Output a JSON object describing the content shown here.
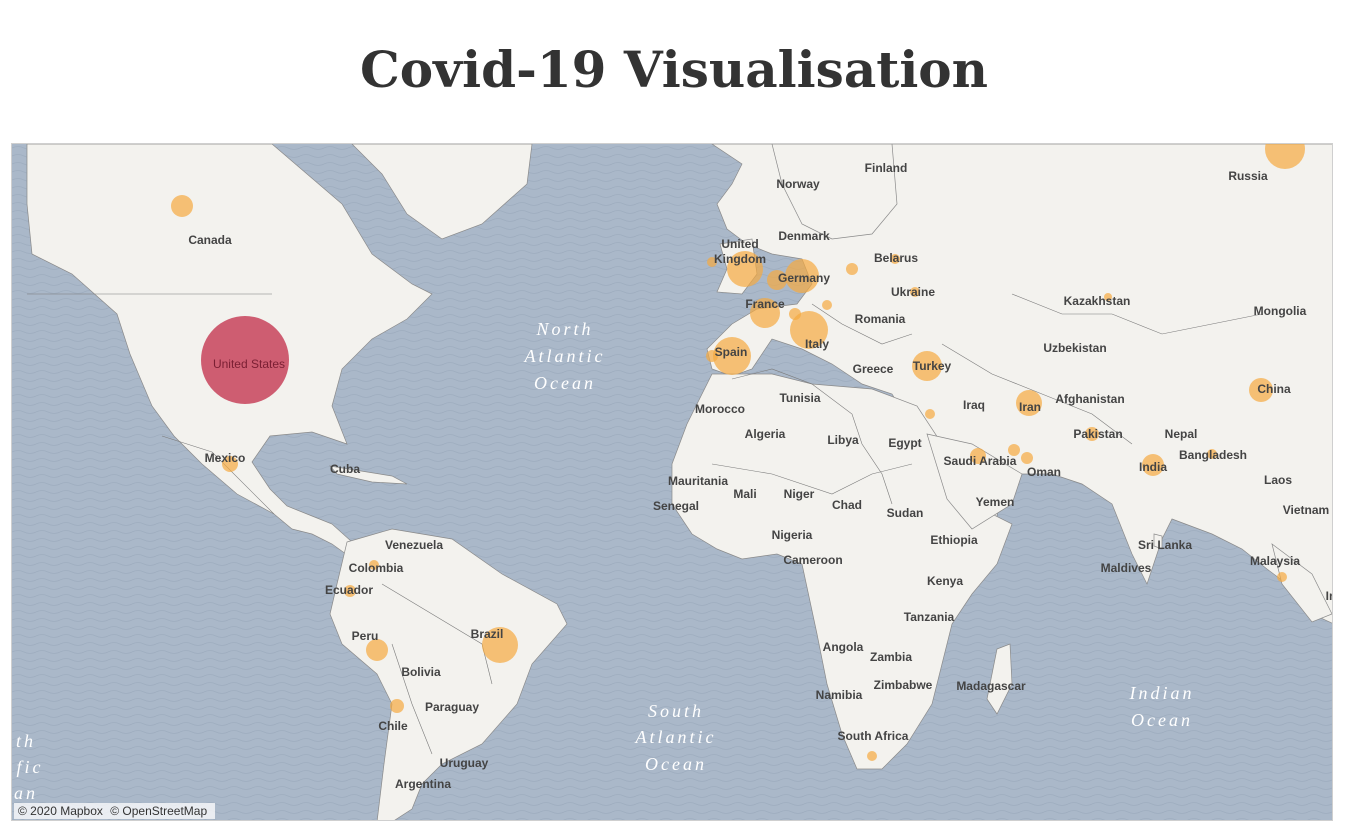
{
  "title": "Covid-19 Visualisation",
  "map": {
    "attribution": [
      "© 2020 Mapbox",
      "© OpenStreetMap"
    ],
    "colors": {
      "ocean": "#aab8c9",
      "land": "#f3f2ee",
      "border": "#6f6f6f",
      "bubble": "#f5a940",
      "bubble_max": "#c7435b",
      "ocean_label": "#ffffff",
      "country_label": "#333333"
    },
    "ocean_labels": [
      {
        "lines": [
          "North",
          "Atlantic",
          "Ocean"
        ]
      },
      {
        "lines": [
          "South",
          "Atlantic",
          "Ocean"
        ]
      },
      {
        "lines": [
          "Indian",
          "Ocean"
        ]
      },
      {
        "lines": [
          "th",
          "fic",
          "an"
        ]
      }
    ],
    "country_labels": [
      "Finland",
      "Norway",
      "Russia",
      "Canada",
      "United",
      "Kingdom",
      "Denmark",
      "Belarus",
      "Germany",
      "Ukraine",
      "Kazakhstan",
      "Mongolia",
      "France",
      "Romania",
      "Uzbekistan",
      "Spain",
      "Italy",
      "Greece",
      "Turkey",
      "China",
      "Morocco",
      "Tunisia",
      "Iraq",
      "Iran",
      "Afghanistan",
      "Algeria",
      "Libya",
      "Egypt",
      "Pakistan",
      "Nepal",
      "Bangladesh",
      "Saudi Arabia",
      "Oman",
      "India",
      "Mexico",
      "Cuba",
      "Mauritania",
      "Mali",
      "Niger",
      "Chad",
      "Laos",
      "Senegal",
      "Sudan",
      "Yemen",
      "Vietnam",
      "Venezuela",
      "Nigeria",
      "Ethiopia",
      "Colombia",
      "Cameroon",
      "Sri Lanka",
      "Ecuador",
      "Kenya",
      "Maldives",
      "Malaysia",
      "Tanzania",
      "Peru",
      "Brazil",
      "Angola",
      "Zambia",
      "Bolivia",
      "Zimbabwe",
      "Madagascar",
      "Namibia",
      "Paraguay",
      "Chile",
      "South Africa",
      "Uruguay",
      "Argentina",
      "United States",
      "In"
    ]
  }
}
